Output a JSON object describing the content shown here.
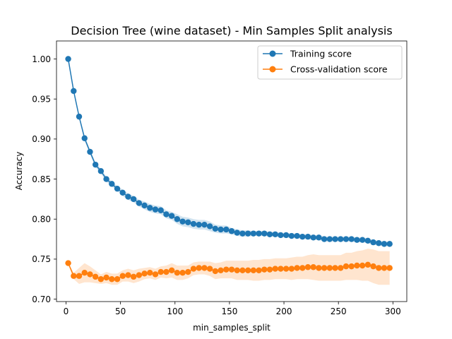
{
  "chart_data": {
    "type": "line",
    "title": "Decision Tree (wine dataset) - Min Samples Split analysis",
    "xlabel": "min_samples_split",
    "ylabel": "Accuracy",
    "xlim": [
      -8.75,
      312.75
    ],
    "ylim": [
      0.697,
      1.0225
    ],
    "xticks": [
      0,
      50,
      100,
      150,
      200,
      250,
      300
    ],
    "xtick_labels": [
      "0",
      "50",
      "100",
      "150",
      "200",
      "250",
      "300"
    ],
    "yticks": [
      0.7,
      0.75,
      0.8,
      0.85,
      0.9,
      0.95,
      1.0
    ],
    "ytick_labels": [
      "0.70",
      "0.75",
      "0.80",
      "0.85",
      "0.90",
      "0.95",
      "1.00"
    ],
    "grid": false,
    "legend_position": "top-right",
    "x": [
      2,
      7,
      12,
      17,
      22,
      27,
      32,
      37,
      42,
      47,
      52,
      57,
      62,
      67,
      72,
      77,
      82,
      87,
      92,
      97,
      102,
      107,
      112,
      117,
      122,
      127,
      132,
      137,
      142,
      147,
      152,
      157,
      162,
      167,
      172,
      177,
      182,
      187,
      192,
      197,
      202,
      207,
      212,
      217,
      222,
      227,
      232,
      237,
      242,
      247,
      252,
      257,
      262,
      267,
      272,
      277,
      282,
      287,
      292,
      297
    ],
    "series": [
      {
        "name": "Training score",
        "color": "#1f77b4",
        "values": [
          1.0,
          0.96,
          0.928,
          0.901,
          0.884,
          0.868,
          0.86,
          0.85,
          0.844,
          0.838,
          0.833,
          0.828,
          0.825,
          0.82,
          0.817,
          0.814,
          0.812,
          0.811,
          0.806,
          0.804,
          0.8,
          0.797,
          0.796,
          0.794,
          0.793,
          0.793,
          0.791,
          0.788,
          0.787,
          0.787,
          0.785,
          0.783,
          0.782,
          0.782,
          0.782,
          0.782,
          0.782,
          0.781,
          0.781,
          0.78,
          0.78,
          0.779,
          0.779,
          0.778,
          0.778,
          0.777,
          0.777,
          0.775,
          0.775,
          0.775,
          0.775,
          0.775,
          0.775,
          0.774,
          0.774,
          0.773,
          0.771,
          0.77,
          0.769,
          0.769
        ],
        "band_halfwidth": [
          0.0,
          0.002,
          0.002,
          0.003,
          0.003,
          0.003,
          0.003,
          0.003,
          0.003,
          0.003,
          0.004,
          0.004,
          0.004,
          0.004,
          0.005,
          0.005,
          0.005,
          0.005,
          0.005,
          0.005,
          0.006,
          0.006,
          0.006,
          0.006,
          0.006,
          0.006,
          0.006,
          0.005,
          0.005,
          0.005,
          0.004,
          0.004,
          0.004,
          0.004,
          0.003,
          0.003,
          0.003,
          0.003,
          0.003,
          0.003,
          0.003,
          0.003,
          0.003,
          0.003,
          0.003,
          0.003,
          0.003,
          0.003,
          0.003,
          0.003,
          0.003,
          0.003,
          0.003,
          0.003,
          0.003,
          0.003,
          0.003,
          0.003,
          0.003,
          0.003
        ]
      },
      {
        "name": "Cross-validation score",
        "color": "#ff7f0e",
        "values": [
          0.745,
          0.729,
          0.729,
          0.733,
          0.731,
          0.728,
          0.725,
          0.727,
          0.725,
          0.725,
          0.729,
          0.73,
          0.728,
          0.73,
          0.732,
          0.733,
          0.731,
          0.734,
          0.734,
          0.736,
          0.733,
          0.733,
          0.734,
          0.738,
          0.739,
          0.739,
          0.738,
          0.735,
          0.736,
          0.737,
          0.737,
          0.736,
          0.736,
          0.736,
          0.736,
          0.736,
          0.737,
          0.737,
          0.738,
          0.738,
          0.738,
          0.738,
          0.739,
          0.739,
          0.74,
          0.74,
          0.739,
          0.739,
          0.739,
          0.739,
          0.739,
          0.741,
          0.741,
          0.742,
          0.742,
          0.743,
          0.741,
          0.739,
          0.739,
          0.739
        ],
        "band_halfwidth": [
          0.001,
          0.004,
          0.01,
          0.012,
          0.01,
          0.008,
          0.006,
          0.007,
          0.007,
          0.007,
          0.007,
          0.008,
          0.008,
          0.008,
          0.007,
          0.007,
          0.007,
          0.007,
          0.008,
          0.009,
          0.009,
          0.009,
          0.008,
          0.008,
          0.008,
          0.008,
          0.009,
          0.01,
          0.01,
          0.011,
          0.011,
          0.012,
          0.012,
          0.012,
          0.013,
          0.013,
          0.013,
          0.013,
          0.013,
          0.013,
          0.013,
          0.014,
          0.014,
          0.014,
          0.015,
          0.016,
          0.016,
          0.016,
          0.016,
          0.016,
          0.016,
          0.017,
          0.017,
          0.018,
          0.019,
          0.02,
          0.021,
          0.021,
          0.021,
          0.021
        ]
      }
    ]
  }
}
